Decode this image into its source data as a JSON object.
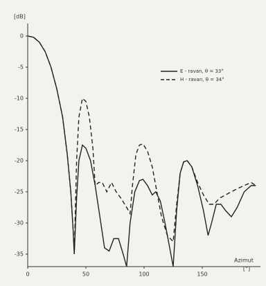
{
  "chart_data": {
    "type": "line",
    "y_label": "[dB]",
    "x_label": "Azimut",
    "x_unit": "[°]",
    "xlim": [
      0,
      200
    ],
    "xticks": [
      0,
      50,
      100,
      150
    ],
    "ylim": [
      -37,
      2
    ],
    "yticks": [
      0,
      -5,
      -10,
      -15,
      -20,
      -25,
      -30,
      -35
    ],
    "series": [
      {
        "name": "E - ravan, θ = 33°",
        "color": "#222222",
        "style": "solid",
        "x": [
          0,
          5,
          10,
          15,
          20,
          25,
          30,
          34,
          37,
          39,
          40,
          42,
          44,
          47,
          50,
          54,
          58,
          62,
          66,
          70,
          74,
          78,
          82,
          85,
          88,
          92,
          96,
          99,
          103,
          107,
          110,
          114,
          118,
          122,
          125,
          128,
          131,
          134,
          137,
          141,
          146,
          151,
          155,
          158,
          162,
          166,
          170,
          175,
          180,
          186,
          192,
          196
        ],
        "values": [
          0,
          -0.2,
          -1,
          -2.5,
          -5,
          -8.5,
          -13,
          -19,
          -25,
          -31,
          -35,
          -26,
          -20,
          -17.5,
          -18,
          -20,
          -24,
          -29,
          -34,
          -34.5,
          -32.5,
          -32.5,
          -35,
          -37,
          -30,
          -25,
          -23.2,
          -23,
          -24,
          -25.5,
          -25,
          -26.5,
          -30,
          -34,
          -37,
          -28,
          -22,
          -20.2,
          -20,
          -21,
          -24,
          -28,
          -32,
          -30,
          -27,
          -27,
          -28,
          -29,
          -27.5,
          -25,
          -24,
          -24
        ]
      },
      {
        "name": "H - ravan, θ = 34°",
        "color": "#222222",
        "style": "dashed",
        "x": [
          0,
          5,
          10,
          15,
          20,
          25,
          30,
          34,
          37,
          39,
          40,
          42,
          44,
          47,
          50,
          53,
          56,
          58,
          61,
          64,
          68,
          72,
          76,
          80,
          85,
          88,
          90,
          93,
          96,
          99,
          103,
          107,
          111,
          115,
          120,
          125,
          128,
          131,
          134,
          137,
          141,
          146,
          151,
          156,
          160,
          165,
          170,
          175,
          180,
          186,
          192,
          196
        ],
        "values": [
          0,
          -0.2,
          -1,
          -2.5,
          -5,
          -8.5,
          -13,
          -19,
          -25,
          -31,
          -35,
          -20,
          -13,
          -10,
          -10.5,
          -13,
          -18,
          -24,
          -23.5,
          -23.5,
          -25,
          -23.5,
          -25,
          -26,
          -27.5,
          -28.5,
          -24,
          -19,
          -17.5,
          -17.3,
          -18.5,
          -21,
          -25,
          -29,
          -32,
          -33,
          -27,
          -22,
          -20.2,
          -20,
          -21,
          -23.5,
          -25.5,
          -27,
          -27,
          -26,
          -25.5,
          -25,
          -24.5,
          -24,
          -23.5,
          -24
        ]
      }
    ]
  }
}
